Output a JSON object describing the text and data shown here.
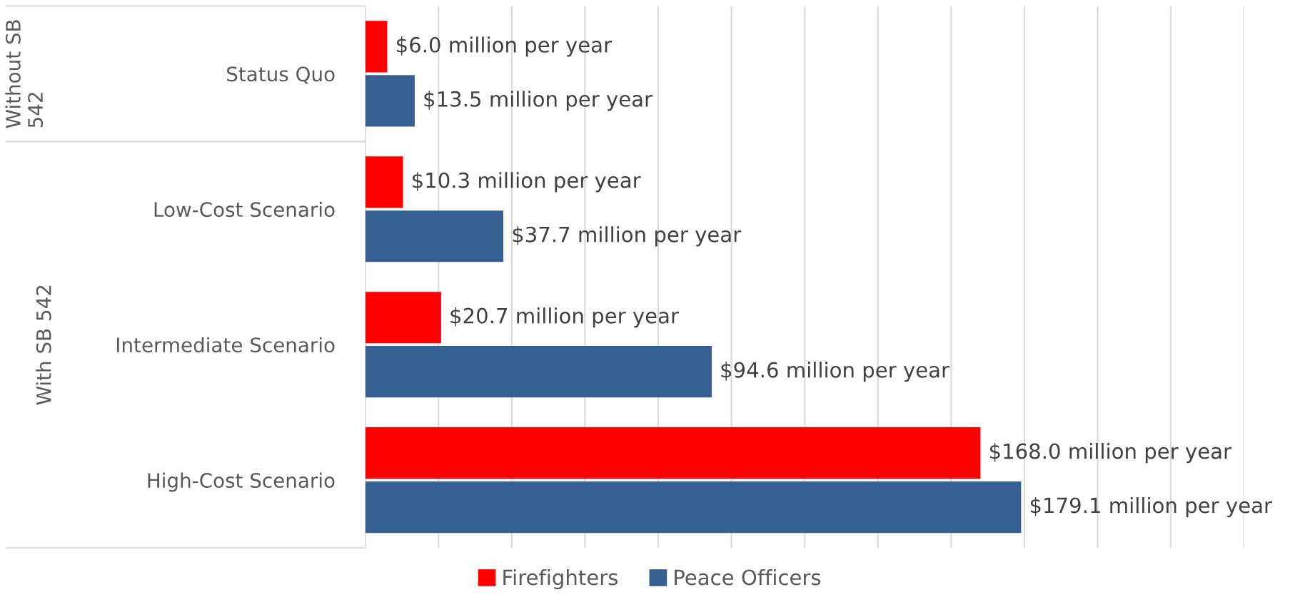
{
  "chart_data": {
    "type": "bar",
    "orientation": "horizontal",
    "categories": [
      "Status Quo",
      "Low-Cost Scenario",
      "Intermediate Scenario",
      "High-Cost Scenario"
    ],
    "series": [
      {
        "name": "Firefighters",
        "color": "#ff0000",
        "values": [
          6.0,
          10.3,
          20.7,
          168.0
        ],
        "value_labels": [
          "$6.0 million per year",
          "$10.3 million per year",
          "$20.7 million per year",
          "$168.0 million per year"
        ]
      },
      {
        "name": "Peace Officers",
        "color": "#376092",
        "values": [
          13.5,
          37.7,
          94.6,
          179.1
        ],
        "value_labels": [
          "$13.5 million per year",
          "$37.7 million per year",
          "$94.6 million per year",
          "$179.1 million per year"
        ]
      }
    ],
    "xlim": [
      0,
      240
    ],
    "xticks": [
      {
        "value": 0,
        "label": null
      },
      {
        "value": 20,
        "label": null
      },
      {
        "value": 40,
        "label": null
      },
      {
        "value": 60,
        "label": null
      },
      {
        "value": 80,
        "label": null
      },
      {
        "value": 100,
        "label": null
      },
      {
        "value": 120,
        "label": null
      },
      {
        "value": 140,
        "label": null
      },
      {
        "value": 160,
        "label": null
      },
      {
        "value": 180,
        "label": null
      },
      {
        "value": 200,
        "label": null
      },
      {
        "value": 220,
        "label": null
      },
      {
        "value": 240,
        "label": null
      }
    ],
    "tick_labels": "y",
    "grid": "x",
    "legend": "bottom",
    "annotations": [
      "Without SB 542",
      "With SB 542"
    ]
  }
}
